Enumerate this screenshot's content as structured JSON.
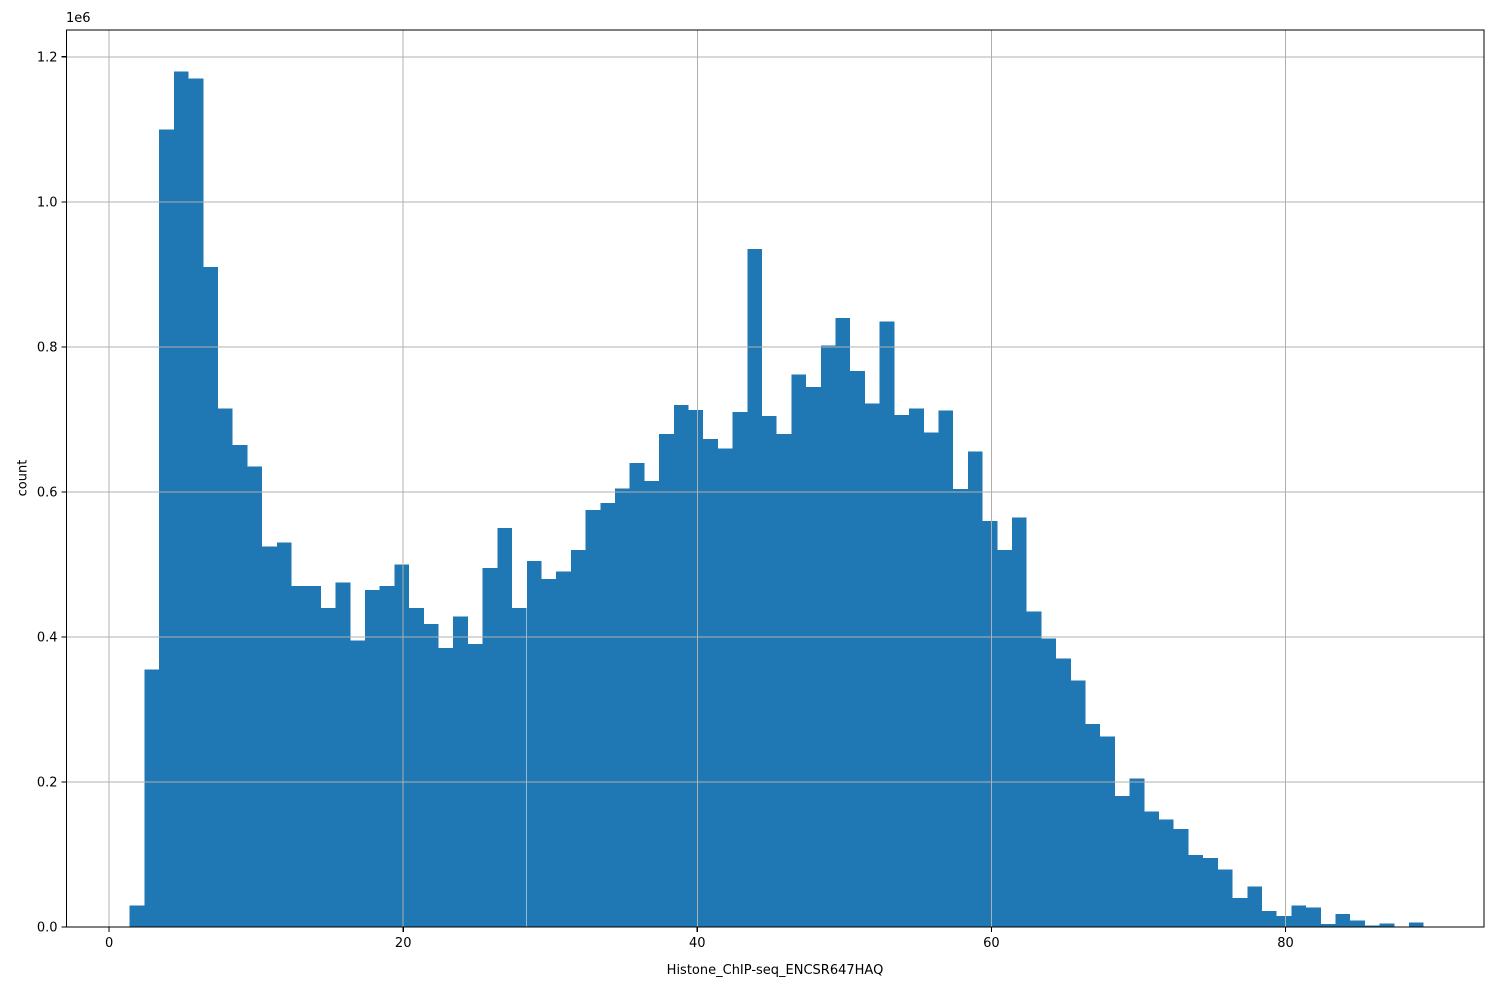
{
  "figure": {
    "xlabel": "Histone_ChIP-seq_ENCSR647HAQ",
    "ylabel": "count",
    "offset_label": "1e6"
  },
  "chart_data": {
    "type": "bar",
    "subtype": "histogram",
    "title": "",
    "xlabel": "Histone_ChIP-seq_ENCSR647HAQ",
    "ylabel": "count",
    "y_offset_multiplier": "1e6",
    "bin_start": 1.4,
    "bin_width": 1.0,
    "values_millions": [
      0.03,
      0.355,
      1.1,
      1.18,
      1.17,
      0.91,
      0.715,
      0.665,
      0.635,
      0.525,
      0.53,
      0.47,
      0.47,
      0.44,
      0.475,
      0.395,
      0.465,
      0.47,
      0.5,
      0.44,
      0.418,
      0.385,
      0.428,
      0.39,
      0.495,
      0.55,
      0.44,
      0.505,
      0.48,
      0.49,
      0.52,
      0.575,
      0.585,
      0.605,
      0.64,
      0.615,
      0.68,
      0.72,
      0.713,
      0.673,
      0.66,
      0.71,
      0.935,
      0.705,
      0.68,
      0.762,
      0.745,
      0.802,
      0.84,
      0.767,
      0.722,
      0.835,
      0.706,
      0.715,
      0.682,
      0.712,
      0.604,
      0.656,
      0.56,
      0.52,
      0.565,
      0.435,
      0.398,
      0.37,
      0.34,
      0.28,
      0.263,
      0.181,
      0.205,
      0.159,
      0.148,
      0.135,
      0.099,
      0.095,
      0.079,
      0.04,
      0.056,
      0.022,
      0.015,
      0.03,
      0.027,
      0.004,
      0.018,
      0.009,
      0.002,
      0.005,
      0.0,
      0.0065
    ],
    "xlim": [
      -2.9,
      93.5
    ],
    "ylim": [
      0,
      1.237
    ],
    "x_ticks": [
      0,
      20,
      40,
      60,
      80
    ],
    "x_tick_labels": [
      "0",
      "20",
      "40",
      "60",
      "80"
    ],
    "y_ticks": [
      0.0,
      0.2,
      0.4,
      0.6,
      0.8,
      1.0,
      1.2
    ],
    "y_tick_labels": [
      "0.0",
      "0.2",
      "0.4",
      "0.6",
      "0.8",
      "1.0",
      "1.2"
    ],
    "grid": true,
    "grid_above_bars": true,
    "legend": false,
    "bar_color": "#1f77b4",
    "grid_color": "#b0b0b0",
    "spine_color": "#000000",
    "tick_label_color": "#000000"
  }
}
